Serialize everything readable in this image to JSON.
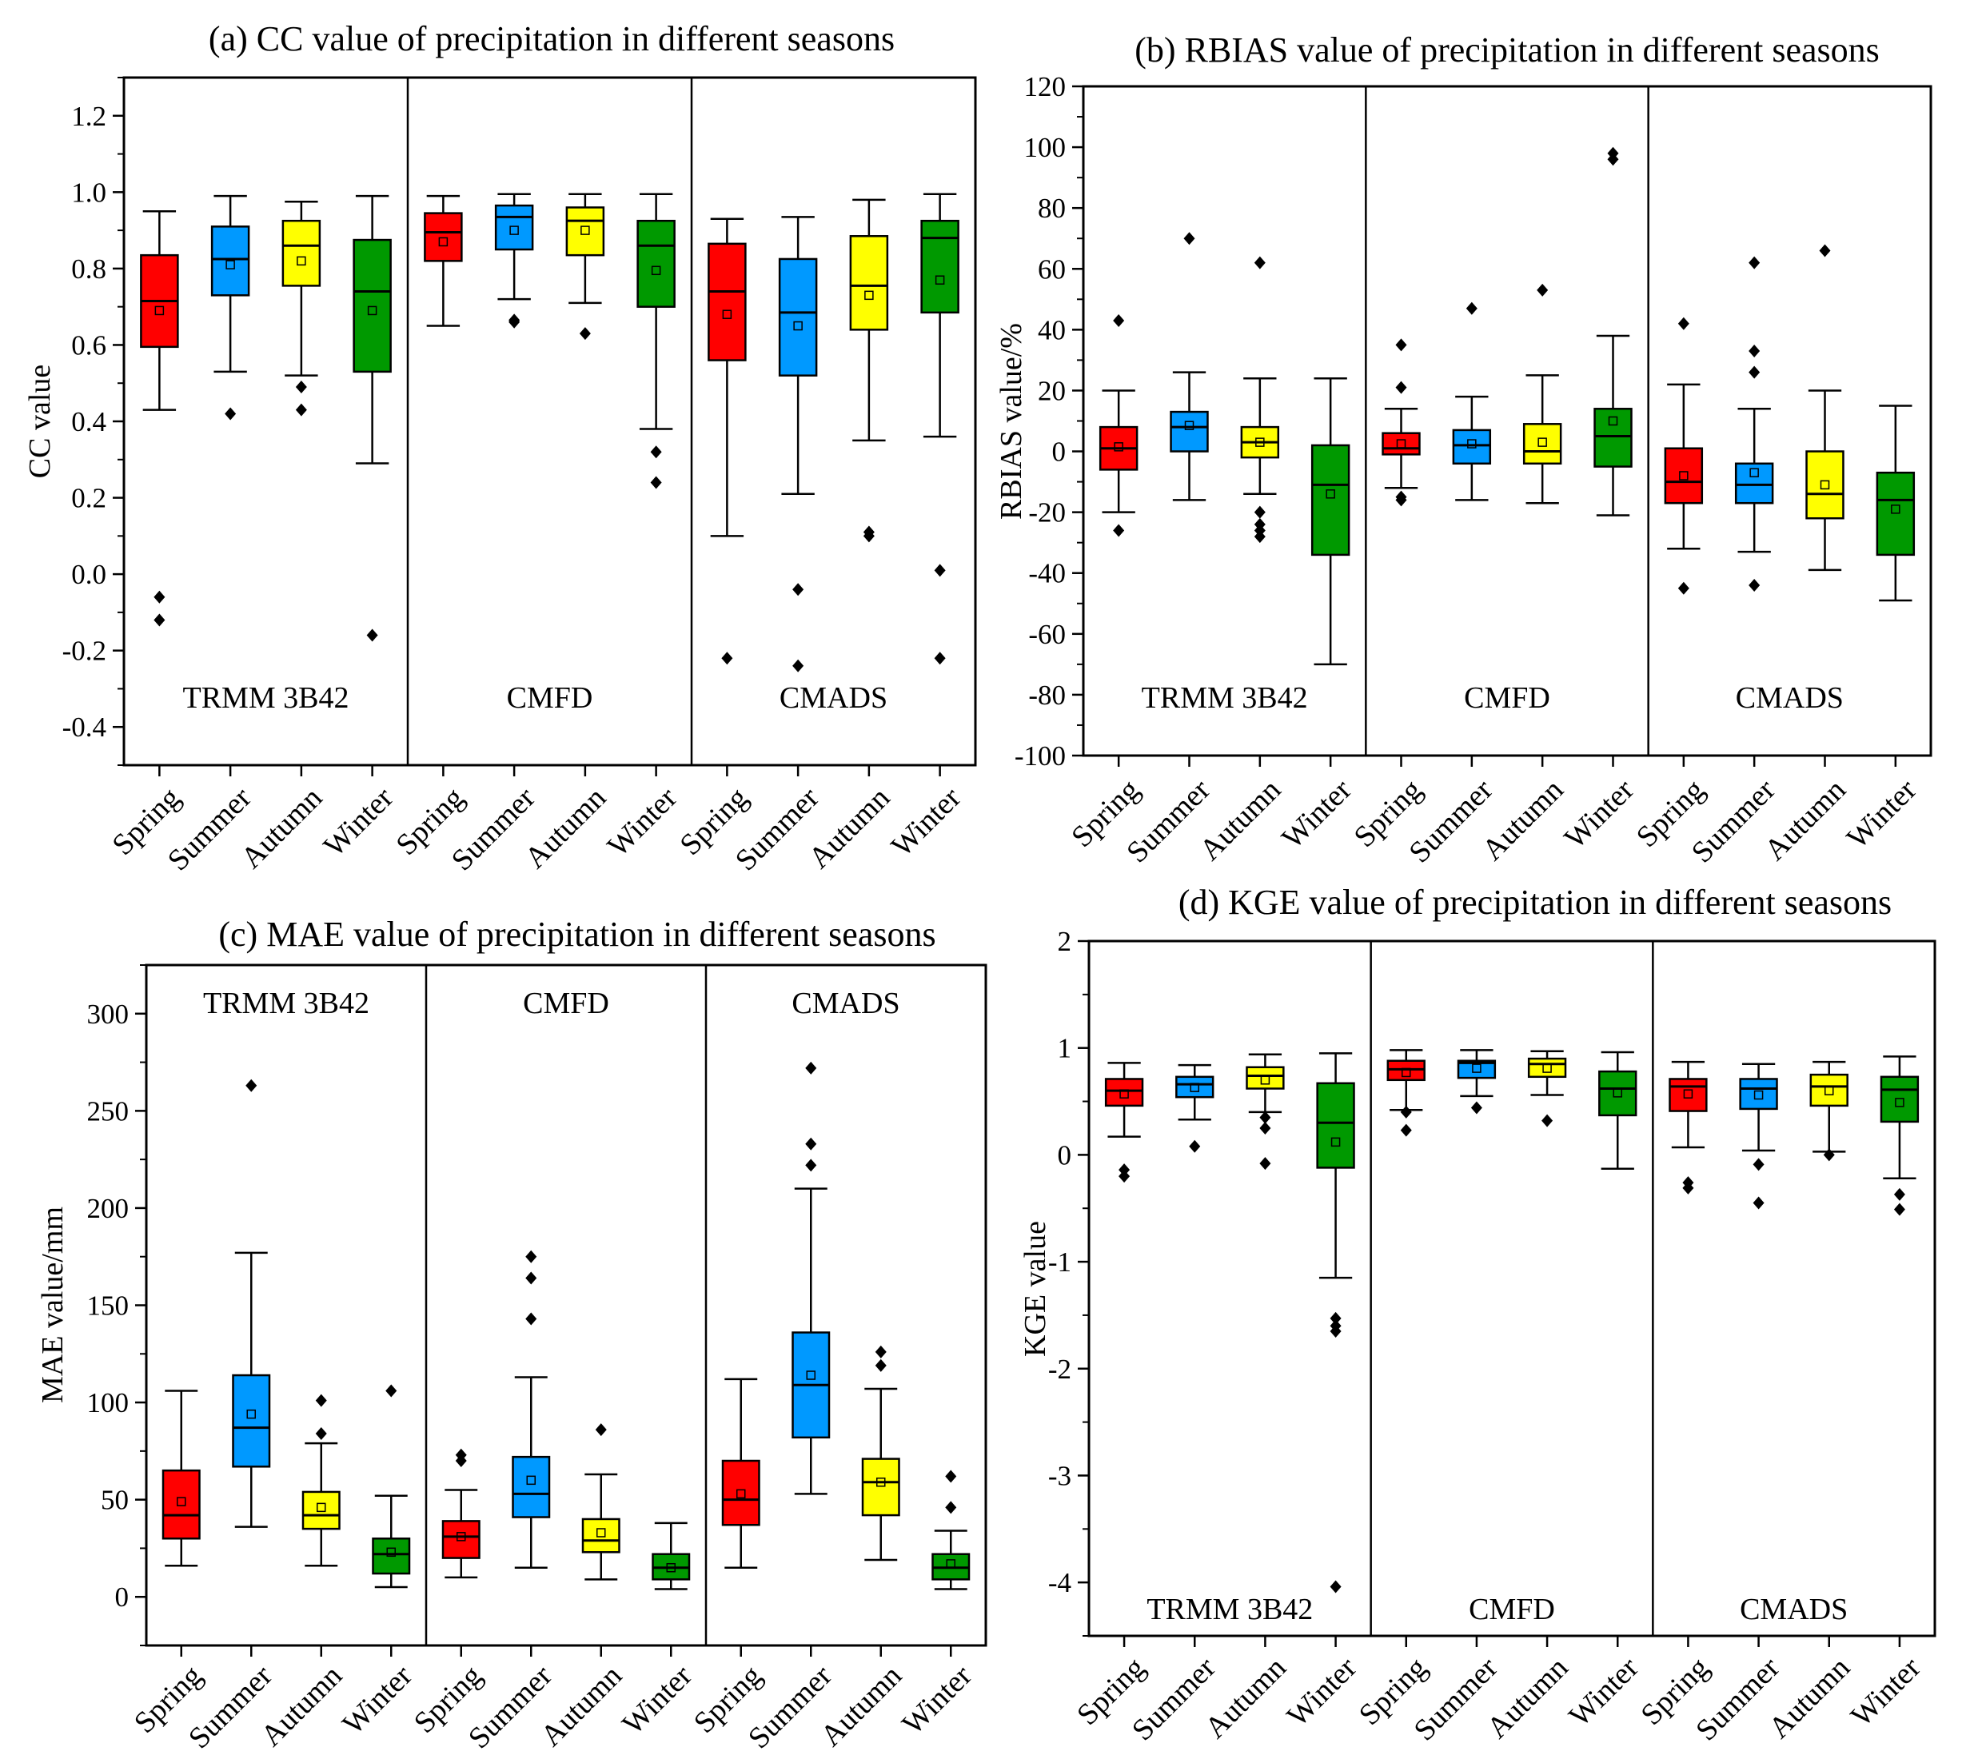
{
  "chart_data": [
    {
      "type": "box",
      "panel": "a",
      "title": "(a) CC value of precipitation in different seasons",
      "ylabel": "CC value",
      "xlabel": "",
      "ylim": [
        -0.5,
        1.3
      ],
      "yticks": [
        -0.4,
        -0.2,
        0.0,
        0.2,
        0.4,
        0.6,
        0.8,
        1.0,
        1.2
      ],
      "ytick_labels": [
        "-0.4",
        "-0.2",
        "0.0",
        "0.2",
        "0.4",
        "0.6",
        "0.8",
        "1.0",
        "1.2"
      ],
      "categories": [
        "Spring",
        "Summer",
        "Autumn",
        "Winter"
      ],
      "series_colors": [
        "#ff0000",
        "#0099ff",
        "#ffff00",
        "#009900"
      ],
      "groups": [
        {
          "name": "TRMM 3B42",
          "label_pos": "bottom",
          "boxes": [
            {
              "whislo": 0.43,
              "q1": 0.595,
              "med": 0.715,
              "q3": 0.835,
              "whishi": 0.95,
              "mean": 0.69,
              "fliers": [
                -0.06,
                -0.12
              ]
            },
            {
              "whislo": 0.53,
              "q1": 0.73,
              "med": 0.825,
              "q3": 0.91,
              "whishi": 0.99,
              "mean": 0.81,
              "fliers": [
                0.42
              ]
            },
            {
              "whislo": 0.52,
              "q1": 0.755,
              "med": 0.86,
              "q3": 0.925,
              "whishi": 0.975,
              "mean": 0.82,
              "fliers": [
                0.49,
                0.43
              ]
            },
            {
              "whislo": 0.29,
              "q1": 0.53,
              "med": 0.74,
              "q3": 0.875,
              "whishi": 0.99,
              "mean": 0.69,
              "fliers": [
                -0.16
              ]
            }
          ]
        },
        {
          "name": "CMFD",
          "label_pos": "bottom",
          "boxes": [
            {
              "whislo": 0.65,
              "q1": 0.82,
              "med": 0.895,
              "q3": 0.945,
              "whishi": 0.99,
              "mean": 0.87,
              "fliers": []
            },
            {
              "whislo": 0.72,
              "q1": 0.85,
              "med": 0.935,
              "q3": 0.965,
              "whishi": 0.995,
              "mean": 0.9,
              "fliers": [
                0.665,
                0.66
              ]
            },
            {
              "whislo": 0.71,
              "q1": 0.835,
              "med": 0.925,
              "q3": 0.96,
              "whishi": 0.995,
              "mean": 0.9,
              "fliers": [
                0.63
              ]
            },
            {
              "whislo": 0.38,
              "q1": 0.7,
              "med": 0.86,
              "q3": 0.925,
              "whishi": 0.995,
              "mean": 0.795,
              "fliers": [
                0.32,
                0.24
              ]
            }
          ]
        },
        {
          "name": "CMADS",
          "label_pos": "bottom",
          "boxes": [
            {
              "whislo": 0.1,
              "q1": 0.56,
              "med": 0.74,
              "q3": 0.865,
              "whishi": 0.93,
              "mean": 0.68,
              "fliers": [
                -0.22
              ]
            },
            {
              "whislo": 0.21,
              "q1": 0.52,
              "med": 0.685,
              "q3": 0.825,
              "whishi": 0.935,
              "mean": 0.65,
              "fliers": [
                -0.04,
                -0.24
              ]
            },
            {
              "whislo": 0.35,
              "q1": 0.64,
              "med": 0.755,
              "q3": 0.885,
              "whishi": 0.98,
              "mean": 0.73,
              "fliers": [
                0.11,
                0.1
              ]
            },
            {
              "whislo": 0.36,
              "q1": 0.685,
              "med": 0.88,
              "q3": 0.925,
              "whishi": 0.995,
              "mean": 0.77,
              "fliers": [
                0.01,
                -0.22
              ]
            }
          ]
        }
      ]
    },
    {
      "type": "box",
      "panel": "b",
      "title": "(b) RBIAS value of precipitation in different seasons",
      "ylabel": "RBIAS value/%",
      "xlabel": "",
      "ylim": [
        -100,
        120
      ],
      "yticks": [
        -100,
        -80,
        -60,
        -40,
        -20,
        0,
        20,
        40,
        60,
        80,
        100,
        120
      ],
      "ytick_labels": [
        "-100",
        "-80",
        "-60",
        "-40",
        "-20",
        "0",
        "20",
        "40",
        "60",
        "80",
        "100",
        "120"
      ],
      "categories": [
        "Spring",
        "Summer",
        "Autumn",
        "Winter"
      ],
      "series_colors": [
        "#ff0000",
        "#0099ff",
        "#ffff00",
        "#009900"
      ],
      "groups": [
        {
          "name": "TRMM 3B42",
          "label_pos": "bottom",
          "boxes": [
            {
              "whislo": -20,
              "q1": -6,
              "med": 1,
              "q3": 8,
              "whishi": 20,
              "mean": 1.5,
              "fliers": [
                43,
                -26
              ]
            },
            {
              "whislo": -16,
              "q1": 0,
              "med": 8,
              "q3": 13,
              "whishi": 26,
              "mean": 8.5,
              "fliers": [
                70
              ]
            },
            {
              "whislo": -14,
              "q1": -2,
              "med": 3,
              "q3": 8,
              "whishi": 24,
              "mean": 3,
              "fliers": [
                62,
                -20,
                -24,
                -26,
                -28
              ]
            },
            {
              "whislo": -70,
              "q1": -34,
              "med": -11,
              "q3": 2,
              "whishi": 24,
              "mean": -14,
              "fliers": []
            }
          ]
        },
        {
          "name": "CMFD",
          "label_pos": "bottom",
          "boxes": [
            {
              "whislo": -12,
              "q1": -1,
              "med": 1,
              "q3": 6,
              "whishi": 14,
              "mean": 2.5,
              "fliers": [
                35,
                21,
                -15,
                -16
              ]
            },
            {
              "whislo": -16,
              "q1": -4,
              "med": 2,
              "q3": 7,
              "whishi": 18,
              "mean": 2.5,
              "fliers": [
                47
              ]
            },
            {
              "whislo": -17,
              "q1": -4,
              "med": 0,
              "q3": 9,
              "whishi": 25,
              "mean": 3,
              "fliers": [
                53
              ]
            },
            {
              "whislo": -21,
              "q1": -5,
              "med": 5,
              "q3": 14,
              "whishi": 38,
              "mean": 10,
              "fliers": [
                98,
                96
              ]
            }
          ]
        },
        {
          "name": "CMADS",
          "label_pos": "bottom",
          "boxes": [
            {
              "whislo": -32,
              "q1": -17,
              "med": -10,
              "q3": 1,
              "whishi": 22,
              "mean": -8,
              "fliers": [
                42,
                -45
              ]
            },
            {
              "whislo": -33,
              "q1": -17,
              "med": -11,
              "q3": -4,
              "whishi": 14,
              "mean": -7,
              "fliers": [
                62,
                33,
                26,
                -44
              ]
            },
            {
              "whislo": -39,
              "q1": -22,
              "med": -14,
              "q3": 0,
              "whishi": 20,
              "mean": -11,
              "fliers": [
                66
              ]
            },
            {
              "whislo": -49,
              "q1": -34,
              "med": -16,
              "q3": -7,
              "whishi": 15,
              "mean": -19,
              "fliers": []
            }
          ]
        }
      ]
    },
    {
      "type": "box",
      "panel": "c",
      "title": "(c) MAE value of precipitation in different seasons",
      "ylabel": "MAE value/mm",
      "xlabel": "",
      "ylim": [
        -25,
        325
      ],
      "yticks": [
        0,
        50,
        100,
        150,
        200,
        250,
        300
      ],
      "ytick_labels": [
        "0",
        "50",
        "100",
        "150",
        "200",
        "250",
        "300"
      ],
      "categories": [
        "Spring",
        "Summer",
        "Autumn",
        "Winter"
      ],
      "series_colors": [
        "#ff0000",
        "#0099ff",
        "#ffff00",
        "#009900"
      ],
      "groups": [
        {
          "name": "TRMM 3B42",
          "label_pos": "top",
          "boxes": [
            {
              "whislo": 16,
              "q1": 30,
              "med": 42,
              "q3": 65,
              "whishi": 106,
              "mean": 49,
              "fliers": []
            },
            {
              "whislo": 36,
              "q1": 67,
              "med": 87,
              "q3": 114,
              "whishi": 177,
              "mean": 94,
              "fliers": [
                263
              ]
            },
            {
              "whislo": 16,
              "q1": 35,
              "med": 42,
              "q3": 54,
              "whishi": 79,
              "mean": 46,
              "fliers": [
                101,
                84
              ]
            },
            {
              "whislo": 5,
              "q1": 12,
              "med": 22,
              "q3": 30,
              "whishi": 52,
              "mean": 23,
              "fliers": [
                106
              ]
            }
          ]
        },
        {
          "name": "CMFD",
          "label_pos": "top",
          "boxes": [
            {
              "whislo": 10,
              "q1": 20,
              "med": 31,
              "q3": 39,
              "whishi": 55,
              "mean": 31,
              "fliers": [
                73,
                70
              ]
            },
            {
              "whislo": 15,
              "q1": 41,
              "med": 53,
              "q3": 72,
              "whishi": 113,
              "mean": 60,
              "fliers": [
                175,
                164,
                143
              ]
            },
            {
              "whislo": 9,
              "q1": 23,
              "med": 29,
              "q3": 40,
              "whishi": 63,
              "mean": 33,
              "fliers": [
                86
              ]
            },
            {
              "whislo": 4,
              "q1": 9,
              "med": 15,
              "q3": 22,
              "whishi": 38,
              "mean": 15,
              "fliers": []
            }
          ]
        },
        {
          "name": "CMADS",
          "label_pos": "top",
          "boxes": [
            {
              "whislo": 15,
              "q1": 37,
              "med": 50,
              "q3": 70,
              "whishi": 112,
              "mean": 53,
              "fliers": []
            },
            {
              "whislo": 53,
              "q1": 82,
              "med": 109,
              "q3": 136,
              "whishi": 210,
              "mean": 114,
              "fliers": [
                272,
                233,
                222
              ]
            },
            {
              "whislo": 19,
              "q1": 42,
              "med": 59,
              "q3": 71,
              "whishi": 107,
              "mean": 59,
              "fliers": [
                126,
                119
              ]
            },
            {
              "whislo": 4,
              "q1": 9,
              "med": 15,
              "q3": 22,
              "whishi": 34,
              "mean": 17,
              "fliers": [
                62,
                46
              ]
            }
          ]
        }
      ]
    },
    {
      "type": "box",
      "panel": "d",
      "title": "(d) KGE value of precipitation in different seasons",
      "ylabel": "KGE value",
      "xlabel": "",
      "ylim": [
        -4.5,
        2
      ],
      "yticks": [
        -4,
        -3,
        -2,
        -1,
        0,
        1,
        2
      ],
      "ytick_labels": [
        "-4",
        "-3",
        "-2",
        "-1",
        "0",
        "1",
        "2"
      ],
      "categories": [
        "Spring",
        "Summer",
        "Autumn",
        "Winter"
      ],
      "series_colors": [
        "#ff0000",
        "#0099ff",
        "#ffff00",
        "#009900"
      ],
      "groups": [
        {
          "name": "TRMM 3B42",
          "label_pos": "bottom",
          "boxes": [
            {
              "whislo": 0.17,
              "q1": 0.46,
              "med": 0.6,
              "q3": 0.71,
              "whishi": 0.86,
              "mean": 0.57,
              "fliers": [
                -0.14,
                -0.2
              ]
            },
            {
              "whislo": 0.33,
              "q1": 0.54,
              "med": 0.66,
              "q3": 0.73,
              "whishi": 0.84,
              "mean": 0.63,
              "fliers": [
                0.08
              ]
            },
            {
              "whislo": 0.4,
              "q1": 0.62,
              "med": 0.74,
              "q3": 0.82,
              "whishi": 0.94,
              "mean": 0.7,
              "fliers": [
                0.35,
                0.25,
                -0.08
              ]
            },
            {
              "whislo": -1.15,
              "q1": -0.12,
              "med": 0.3,
              "q3": 0.67,
              "whishi": 0.95,
              "mean": 0.12,
              "fliers": [
                -1.53,
                -1.6,
                -1.65,
                -4.04
              ]
            }
          ]
        },
        {
          "name": "CMFD",
          "label_pos": "bottom",
          "boxes": [
            {
              "whislo": 0.42,
              "q1": 0.7,
              "med": 0.8,
              "q3": 0.88,
              "whishi": 0.98,
              "mean": 0.77,
              "fliers": [
                0.4,
                0.23
              ]
            },
            {
              "whislo": 0.55,
              "q1": 0.72,
              "med": 0.86,
              "q3": 0.88,
              "whishi": 0.98,
              "mean": 0.81,
              "fliers": [
                0.44
              ]
            },
            {
              "whislo": 0.56,
              "q1": 0.73,
              "med": 0.85,
              "q3": 0.9,
              "whishi": 0.97,
              "mean": 0.81,
              "fliers": [
                0.32
              ]
            },
            {
              "whislo": -0.13,
              "q1": 0.37,
              "med": 0.62,
              "q3": 0.78,
              "whishi": 0.96,
              "mean": 0.58,
              "fliers": []
            }
          ]
        },
        {
          "name": "CMADS",
          "label_pos": "bottom",
          "boxes": [
            {
              "whislo": 0.07,
              "q1": 0.41,
              "med": 0.64,
              "q3": 0.71,
              "whishi": 0.87,
              "mean": 0.57,
              "fliers": [
                -0.26,
                -0.31
              ]
            },
            {
              "whislo": 0.04,
              "q1": 0.43,
              "med": 0.62,
              "q3": 0.71,
              "whishi": 0.85,
              "mean": 0.56,
              "fliers": [
                -0.09,
                -0.45
              ]
            },
            {
              "whislo": 0.03,
              "q1": 0.46,
              "med": 0.64,
              "q3": 0.75,
              "whishi": 0.87,
              "mean": 0.6,
              "fliers": [
                0.0
              ]
            },
            {
              "whislo": -0.22,
              "q1": 0.31,
              "med": 0.61,
              "q3": 0.73,
              "whishi": 0.92,
              "mean": 0.49,
              "fliers": [
                -0.37,
                -0.51
              ]
            }
          ]
        }
      ]
    }
  ]
}
